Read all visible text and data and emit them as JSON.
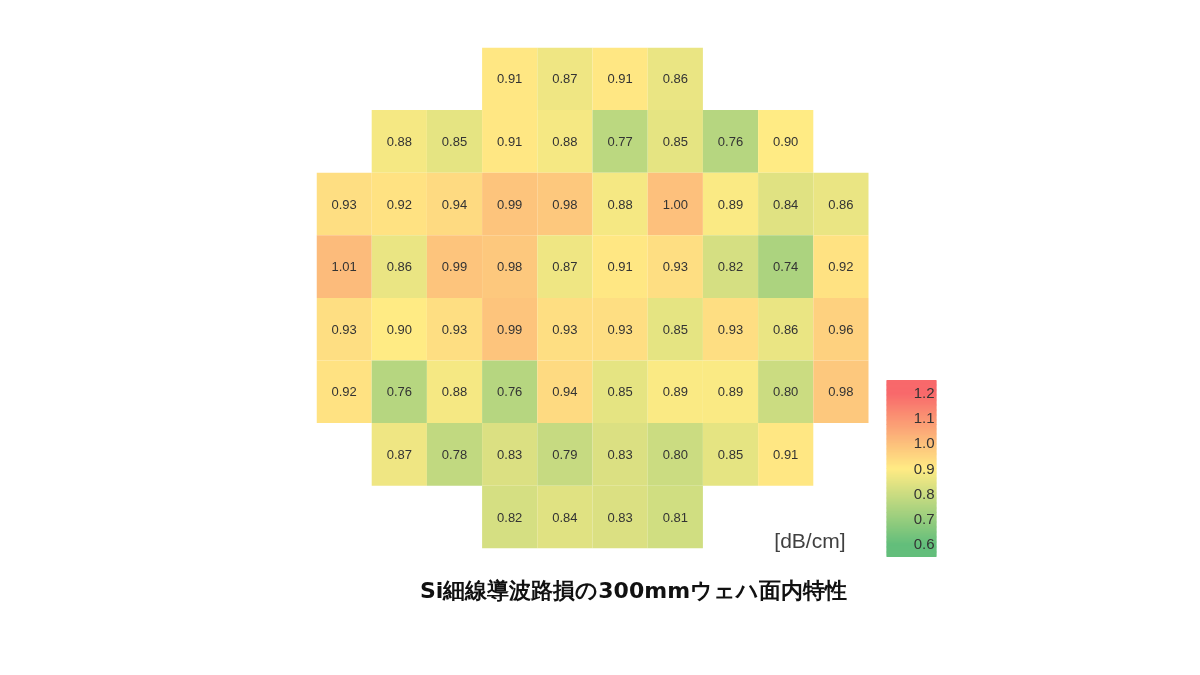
{
  "chart_data": {
    "type": "heatmap",
    "title": "Si細線導波路損の300mmウェハ面内特性",
    "clabel": "[dB/cm]",
    "categories": [
      null,
      null,
      null,
      null,
      null,
      null,
      null,
      null,
      null,
      null
    ],
    "y_categories": [
      null,
      null,
      null,
      null,
      null,
      null,
      null,
      null
    ],
    "cells": [
      [
        null,
        null,
        null,
        0.91,
        0.87,
        0.91,
        0.86,
        null,
        null,
        null
      ],
      [
        null,
        0.88,
        0.85,
        0.91,
        0.88,
        0.77,
        0.85,
        0.76,
        0.9,
        null
      ],
      [
        0.93,
        0.92,
        0.94,
        0.99,
        0.98,
        0.88,
        1.0,
        0.89,
        0.84,
        0.86
      ],
      [
        1.01,
        0.86,
        0.99,
        0.98,
        0.87,
        0.91,
        0.93,
        0.82,
        0.74,
        0.92
      ],
      [
        0.93,
        0.9,
        0.93,
        0.99,
        0.93,
        0.93,
        0.85,
        0.93,
        0.86,
        0.96
      ],
      [
        0.92,
        0.76,
        0.88,
        0.76,
        0.94,
        0.85,
        0.89,
        0.89,
        0.8,
        0.98
      ],
      [
        null,
        0.87,
        0.78,
        0.83,
        0.79,
        0.83,
        0.8,
        0.85,
        0.91,
        null
      ],
      [
        null,
        null,
        null,
        0.82,
        0.84,
        0.83,
        0.81,
        null,
        null,
        null
      ]
    ],
    "cell_labels": [
      [
        null,
        null,
        null,
        "0.91",
        "0.87",
        "0.91",
        "0.86",
        null,
        null,
        null
      ],
      [
        null,
        "0.88",
        "0.85",
        "0.91",
        "0.88",
        "0.77",
        "0.85",
        "0.76",
        "0.90",
        null
      ],
      [
        "0.93",
        "0.92",
        "0.94",
        "0.99",
        "0.98",
        "0.88",
        "1.00",
        "0.89",
        "0.84",
        "0.86"
      ],
      [
        "1.01",
        "0.86",
        "0.99",
        "0.98",
        "0.87",
        "0.91",
        "0.93",
        "0.82",
        "0.74",
        "0.92"
      ],
      [
        "0.93",
        "0.90",
        "0.93",
        "0.99",
        "0.93",
        "0.93",
        "0.85",
        "0.93",
        "0.86",
        "0.96"
      ],
      [
        "0.92",
        "0.76",
        "0.88",
        "0.76",
        "0.94",
        "0.85",
        "0.89",
        "0.89",
        "0.80",
        "0.98"
      ],
      [
        null,
        "0.87",
        "0.78",
        "0.83",
        "0.79",
        "0.83",
        "0.80",
        "0.85",
        "0.91",
        null
      ],
      [
        null,
        null,
        null,
        "0.82",
        "0.84",
        "0.83",
        "0.81",
        null,
        null,
        null
      ]
    ],
    "clim": [
      0.55,
      1.25
    ],
    "cticks": [
      {
        "value": 1.2,
        "label": "1.2"
      },
      {
        "value": 1.1,
        "label": "1.1"
      },
      {
        "value": 1.0,
        "label": "1.0"
      },
      {
        "value": 0.9,
        "label": "0.9"
      },
      {
        "value": 0.8,
        "label": "0.8"
      },
      {
        "value": 0.7,
        "label": "0.7"
      },
      {
        "value": 0.6,
        "label": "0.6"
      }
    ]
  }
}
